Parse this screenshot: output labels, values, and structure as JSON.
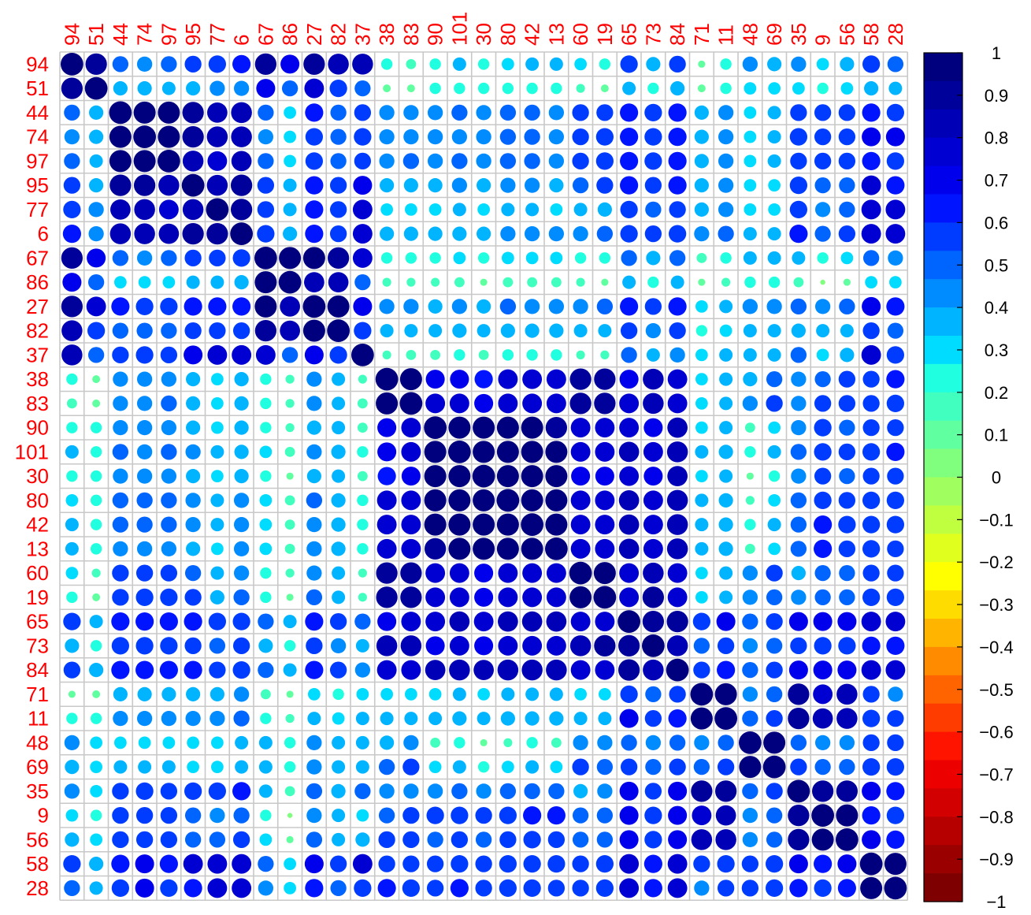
{
  "chart_data": {
    "type": "heatmap",
    "subtype": "correlation-circle-matrix",
    "title": "",
    "xlabel": "",
    "ylabel": "",
    "labels": [
      "94",
      "51",
      "44",
      "74",
      "97",
      "95",
      "77",
      "6",
      "67",
      "86",
      "27",
      "82",
      "37",
      "38",
      "83",
      "90",
      "101",
      "30",
      "80",
      "42",
      "13",
      "60",
      "19",
      "65",
      "73",
      "84",
      "71",
      "11",
      "48",
      "69",
      "35",
      "9",
      "56",
      "58",
      "28"
    ],
    "label_color": "#ff0000",
    "grid_color": "#c8c8c8",
    "value_range": [
      -1,
      1
    ],
    "values": [
      [
        1,
        0.9,
        0.5,
        0.45,
        0.5,
        0.55,
        0.6,
        0.65,
        0.9,
        0.7,
        0.9,
        0.85,
        0.85,
        0.25,
        0.2,
        0.25,
        0.35,
        0.25,
        0.3,
        0.35,
        0.35,
        0.3,
        0.25,
        0.6,
        0.4,
        0.55,
        0.1,
        0.25,
        0.45,
        0.4,
        0.45,
        0.3,
        0.4,
        0.6,
        0.5
      ],
      [
        0.9,
        1,
        0.4,
        0.4,
        0.35,
        0.4,
        0.45,
        0.45,
        0.7,
        0.5,
        0.75,
        0.6,
        0.5,
        0.12,
        0.12,
        0.25,
        0.25,
        0.25,
        0.25,
        0.25,
        0.25,
        0.15,
        0.12,
        0.35,
        0.25,
        0.4,
        0.12,
        0.25,
        0.3,
        0.3,
        0.3,
        0.25,
        0.3,
        0.4,
        0.35
      ],
      [
        0.5,
        0.4,
        1,
        0.95,
        0.95,
        0.9,
        0.8,
        0.85,
        0.5,
        0.3,
        0.65,
        0.5,
        0.55,
        0.45,
        0.45,
        0.45,
        0.5,
        0.45,
        0.5,
        0.5,
        0.45,
        0.55,
        0.55,
        0.65,
        0.6,
        0.65,
        0.4,
        0.45,
        0.3,
        0.35,
        0.55,
        0.55,
        0.55,
        0.65,
        0.6
      ],
      [
        0.45,
        0.4,
        0.95,
        1,
        0.95,
        0.9,
        0.85,
        0.85,
        0.45,
        0.3,
        0.6,
        0.5,
        0.6,
        0.45,
        0.45,
        0.45,
        0.45,
        0.45,
        0.5,
        0.5,
        0.45,
        0.55,
        0.6,
        0.65,
        0.6,
        0.65,
        0.4,
        0.45,
        0.3,
        0.35,
        0.6,
        0.55,
        0.55,
        0.7,
        0.7
      ],
      [
        0.5,
        0.35,
        0.95,
        0.95,
        1,
        0.85,
        0.75,
        0.8,
        0.5,
        0.3,
        0.6,
        0.5,
        0.55,
        0.45,
        0.5,
        0.45,
        0.5,
        0.45,
        0.5,
        0.5,
        0.45,
        0.55,
        0.6,
        0.65,
        0.6,
        0.65,
        0.4,
        0.45,
        0.3,
        0.35,
        0.55,
        0.55,
        0.55,
        0.65,
        0.6
      ],
      [
        0.55,
        0.4,
        0.9,
        0.9,
        0.85,
        1,
        0.85,
        0.9,
        0.55,
        0.35,
        0.65,
        0.55,
        0.7,
        0.4,
        0.4,
        0.4,
        0.45,
        0.4,
        0.45,
        0.45,
        0.4,
        0.5,
        0.55,
        0.65,
        0.55,
        0.65,
        0.4,
        0.45,
        0.3,
        0.3,
        0.6,
        0.5,
        0.5,
        0.75,
        0.65
      ],
      [
        0.6,
        0.45,
        0.8,
        0.85,
        0.75,
        0.85,
        1,
        0.9,
        0.55,
        0.35,
        0.65,
        0.55,
        0.75,
        0.3,
        0.3,
        0.3,
        0.35,
        0.3,
        0.35,
        0.35,
        0.3,
        0.35,
        0.4,
        0.6,
        0.5,
        0.55,
        0.4,
        0.45,
        0.3,
        0.3,
        0.6,
        0.45,
        0.5,
        0.75,
        0.75
      ],
      [
        0.65,
        0.45,
        0.85,
        0.85,
        0.8,
        0.9,
        0.9,
        1,
        0.6,
        0.4,
        0.65,
        0.55,
        0.75,
        0.4,
        0.4,
        0.4,
        0.4,
        0.4,
        0.45,
        0.45,
        0.45,
        0.45,
        0.5,
        0.6,
        0.55,
        0.6,
        0.45,
        0.5,
        0.35,
        0.35,
        0.65,
        0.5,
        0.55,
        0.75,
        0.75
      ],
      [
        0.9,
        0.7,
        0.5,
        0.45,
        0.5,
        0.55,
        0.55,
        0.6,
        1,
        0.95,
        0.95,
        0.9,
        0.75,
        0.25,
        0.25,
        0.25,
        0.3,
        0.25,
        0.3,
        0.3,
        0.3,
        0.25,
        0.25,
        0.5,
        0.4,
        0.5,
        0.2,
        0.25,
        0.35,
        0.35,
        0.35,
        0.25,
        0.3,
        0.5,
        0.45
      ],
      [
        0.7,
        0.5,
        0.3,
        0.3,
        0.3,
        0.35,
        0.35,
        0.4,
        0.95,
        1,
        0.8,
        0.8,
        0.5,
        0.15,
        0.15,
        0.15,
        0.2,
        0.1,
        0.2,
        0.2,
        0.2,
        0.15,
        0.1,
        0.35,
        0.25,
        0.35,
        0.1,
        0.15,
        0.25,
        0.25,
        0.2,
        0.05,
        0.1,
        0.3,
        0.3
      ],
      [
        0.9,
        0.75,
        0.65,
        0.6,
        0.6,
        0.65,
        0.65,
        0.65,
        0.95,
        0.8,
        1,
        0.95,
        0.7,
        0.45,
        0.45,
        0.4,
        0.45,
        0.4,
        0.5,
        0.45,
        0.45,
        0.45,
        0.5,
        0.65,
        0.55,
        0.65,
        0.3,
        0.35,
        0.45,
        0.45,
        0.5,
        0.45,
        0.5,
        0.7,
        0.65
      ],
      [
        0.85,
        0.6,
        0.5,
        0.5,
        0.5,
        0.55,
        0.55,
        0.55,
        0.9,
        0.8,
        0.95,
        1,
        0.6,
        0.35,
        0.35,
        0.35,
        0.4,
        0.35,
        0.4,
        0.4,
        0.4,
        0.35,
        0.35,
        0.55,
        0.45,
        0.55,
        0.25,
        0.3,
        0.35,
        0.35,
        0.4,
        0.35,
        0.35,
        0.55,
        0.5
      ],
      [
        0.85,
        0.5,
        0.55,
        0.6,
        0.55,
        0.7,
        0.75,
        0.75,
        0.75,
        0.5,
        0.7,
        0.6,
        1,
        0.15,
        0.2,
        0.2,
        0.25,
        0.2,
        0.25,
        0.25,
        0.25,
        0.15,
        0.15,
        0.5,
        0.35,
        0.45,
        0.3,
        0.35,
        0.35,
        0.35,
        0.5,
        0.3,
        0.4,
        0.75,
        0.6
      ],
      [
        0.25,
        0.12,
        0.45,
        0.45,
        0.45,
        0.4,
        0.3,
        0.4,
        0.25,
        0.15,
        0.45,
        0.35,
        0.15,
        1,
        0.95,
        0.7,
        0.7,
        0.65,
        0.75,
        0.75,
        0.75,
        0.9,
        0.9,
        0.7,
        0.85,
        0.75,
        0.3,
        0.35,
        0.4,
        0.5,
        0.45,
        0.5,
        0.55,
        0.55,
        0.65
      ],
      [
        0.2,
        0.12,
        0.45,
        0.45,
        0.5,
        0.4,
        0.3,
        0.4,
        0.25,
        0.15,
        0.45,
        0.35,
        0.2,
        0.95,
        1,
        0.75,
        0.75,
        0.7,
        0.75,
        0.75,
        0.75,
        0.9,
        0.9,
        0.75,
        0.85,
        0.75,
        0.3,
        0.35,
        0.45,
        0.55,
        0.45,
        0.55,
        0.55,
        0.55,
        0.6
      ],
      [
        0.25,
        0.25,
        0.45,
        0.45,
        0.45,
        0.4,
        0.3,
        0.4,
        0.25,
        0.15,
        0.4,
        0.35,
        0.2,
        0.7,
        0.75,
        1,
        0.95,
        0.95,
        0.95,
        0.95,
        0.9,
        0.75,
        0.75,
        0.75,
        0.7,
        0.8,
        0.3,
        0.35,
        0.2,
        0.3,
        0.45,
        0.6,
        0.5,
        0.55,
        0.55
      ],
      [
        0.35,
        0.25,
        0.5,
        0.45,
        0.5,
        0.45,
        0.35,
        0.4,
        0.3,
        0.2,
        0.45,
        0.4,
        0.25,
        0.7,
        0.75,
        0.95,
        1,
        0.95,
        0.95,
        0.95,
        0.95,
        0.75,
        0.75,
        0.8,
        0.75,
        0.85,
        0.35,
        0.4,
        0.25,
        0.35,
        0.5,
        0.6,
        0.55,
        0.6,
        0.65
      ],
      [
        0.25,
        0.25,
        0.45,
        0.45,
        0.45,
        0.4,
        0.3,
        0.4,
        0.25,
        0.1,
        0.4,
        0.35,
        0.2,
        0.65,
        0.7,
        0.95,
        0.95,
        1,
        0.95,
        0.95,
        0.95,
        0.7,
        0.7,
        0.75,
        0.7,
        0.8,
        0.3,
        0.35,
        0.1,
        0.25,
        0.45,
        0.55,
        0.5,
        0.55,
        0.55
      ],
      [
        0.3,
        0.25,
        0.5,
        0.5,
        0.5,
        0.45,
        0.35,
        0.45,
        0.3,
        0.2,
        0.5,
        0.4,
        0.25,
        0.75,
        0.75,
        0.95,
        0.95,
        0.95,
        1,
        0.95,
        0.95,
        0.75,
        0.75,
        0.8,
        0.75,
        0.85,
        0.35,
        0.4,
        0.15,
        0.3,
        0.5,
        0.6,
        0.55,
        0.6,
        0.6
      ],
      [
        0.35,
        0.25,
        0.5,
        0.5,
        0.5,
        0.45,
        0.35,
        0.45,
        0.3,
        0.2,
        0.45,
        0.4,
        0.25,
        0.75,
        0.75,
        0.95,
        0.95,
        0.95,
        0.95,
        1,
        0.95,
        0.75,
        0.75,
        0.8,
        0.75,
        0.85,
        0.35,
        0.4,
        0.25,
        0.35,
        0.5,
        0.65,
        0.6,
        0.6,
        0.6
      ],
      [
        0.35,
        0.25,
        0.45,
        0.45,
        0.45,
        0.4,
        0.3,
        0.45,
        0.3,
        0.2,
        0.45,
        0.4,
        0.25,
        0.75,
        0.75,
        0.9,
        0.95,
        0.95,
        0.95,
        0.95,
        1,
        0.75,
        0.75,
        0.8,
        0.75,
        0.85,
        0.35,
        0.4,
        0.2,
        0.3,
        0.5,
        0.65,
        0.55,
        0.6,
        0.55
      ],
      [
        0.3,
        0.15,
        0.55,
        0.55,
        0.55,
        0.5,
        0.35,
        0.45,
        0.25,
        0.15,
        0.45,
        0.35,
        0.15,
        0.9,
        0.9,
        0.75,
        0.75,
        0.7,
        0.75,
        0.75,
        0.75,
        1,
        0.95,
        0.75,
        0.85,
        0.75,
        0.3,
        0.35,
        0.45,
        0.55,
        0.4,
        0.5,
        0.5,
        0.55,
        0.55
      ],
      [
        0.25,
        0.12,
        0.55,
        0.6,
        0.6,
        0.55,
        0.4,
        0.5,
        0.25,
        0.1,
        0.5,
        0.35,
        0.15,
        0.9,
        0.9,
        0.75,
        0.75,
        0.7,
        0.75,
        0.75,
        0.75,
        0.95,
        1,
        0.75,
        0.9,
        0.75,
        0.3,
        0.35,
        0.45,
        0.5,
        0.45,
        0.5,
        0.5,
        0.6,
        0.6
      ],
      [
        0.6,
        0.35,
        0.65,
        0.65,
        0.65,
        0.65,
        0.6,
        0.6,
        0.5,
        0.35,
        0.65,
        0.55,
        0.5,
        0.7,
        0.75,
        0.75,
        0.8,
        0.75,
        0.8,
        0.8,
        0.8,
        0.75,
        0.75,
        1,
        0.9,
        0.9,
        0.6,
        0.7,
        0.5,
        0.55,
        0.7,
        0.7,
        0.7,
        0.75,
        0.75
      ],
      [
        0.4,
        0.25,
        0.6,
        0.6,
        0.6,
        0.55,
        0.5,
        0.55,
        0.4,
        0.25,
        0.55,
        0.45,
        0.35,
        0.85,
        0.85,
        0.7,
        0.75,
        0.7,
        0.75,
        0.75,
        0.75,
        0.85,
        0.9,
        0.9,
        1,
        0.85,
        0.5,
        0.55,
        0.45,
        0.5,
        0.55,
        0.6,
        0.6,
        0.65,
        0.65
      ],
      [
        0.55,
        0.4,
        0.65,
        0.65,
        0.65,
        0.65,
        0.55,
        0.6,
        0.5,
        0.35,
        0.65,
        0.55,
        0.45,
        0.75,
        0.75,
        0.8,
        0.85,
        0.8,
        0.85,
        0.85,
        0.85,
        0.75,
        0.75,
        0.9,
        0.85,
        1,
        0.55,
        0.65,
        0.5,
        0.55,
        0.7,
        0.7,
        0.7,
        0.75,
        0.75
      ],
      [
        0.1,
        0.12,
        0.4,
        0.4,
        0.4,
        0.4,
        0.4,
        0.45,
        0.2,
        0.1,
        0.3,
        0.25,
        0.3,
        0.3,
        0.3,
        0.3,
        0.35,
        0.3,
        0.35,
        0.35,
        0.35,
        0.3,
        0.3,
        0.6,
        0.5,
        0.55,
        1,
        0.95,
        0.45,
        0.5,
        0.9,
        0.75,
        0.85,
        0.55,
        0.45
      ],
      [
        0.25,
        0.25,
        0.45,
        0.45,
        0.45,
        0.45,
        0.45,
        0.5,
        0.25,
        0.15,
        0.35,
        0.3,
        0.35,
        0.35,
        0.35,
        0.35,
        0.4,
        0.35,
        0.4,
        0.4,
        0.4,
        0.35,
        0.35,
        0.7,
        0.55,
        0.65,
        0.95,
        1,
        0.5,
        0.55,
        0.9,
        0.8,
        0.85,
        0.6,
        0.55
      ],
      [
        0.45,
        0.3,
        0.3,
        0.3,
        0.3,
        0.3,
        0.3,
        0.35,
        0.35,
        0.25,
        0.45,
        0.35,
        0.35,
        0.4,
        0.45,
        0.2,
        0.25,
        0.1,
        0.15,
        0.25,
        0.2,
        0.45,
        0.45,
        0.5,
        0.45,
        0.5,
        0.45,
        0.5,
        1,
        0.95,
        0.5,
        0.45,
        0.45,
        0.55,
        0.55
      ],
      [
        0.4,
        0.3,
        0.35,
        0.35,
        0.35,
        0.3,
        0.3,
        0.35,
        0.35,
        0.25,
        0.45,
        0.35,
        0.35,
        0.5,
        0.55,
        0.3,
        0.35,
        0.25,
        0.3,
        0.35,
        0.3,
        0.55,
        0.5,
        0.55,
        0.5,
        0.55,
        0.5,
        0.55,
        0.95,
        1,
        0.55,
        0.5,
        0.5,
        0.6,
        0.6
      ],
      [
        0.45,
        0.3,
        0.55,
        0.6,
        0.55,
        0.6,
        0.6,
        0.65,
        0.35,
        0.2,
        0.5,
        0.4,
        0.5,
        0.45,
        0.45,
        0.45,
        0.5,
        0.45,
        0.5,
        0.5,
        0.5,
        0.4,
        0.45,
        0.7,
        0.55,
        0.7,
        0.9,
        0.9,
        0.5,
        0.55,
        1,
        0.9,
        0.9,
        0.7,
        0.65
      ],
      [
        0.3,
        0.25,
        0.55,
        0.55,
        0.55,
        0.5,
        0.45,
        0.5,
        0.25,
        0.05,
        0.45,
        0.35,
        0.3,
        0.5,
        0.55,
        0.6,
        0.6,
        0.55,
        0.6,
        0.65,
        0.65,
        0.5,
        0.5,
        0.7,
        0.6,
        0.7,
        0.75,
        0.8,
        0.45,
        0.5,
        0.9,
        1,
        0.95,
        0.65,
        0.6
      ],
      [
        0.4,
        0.3,
        0.55,
        0.55,
        0.55,
        0.5,
        0.5,
        0.55,
        0.3,
        0.1,
        0.5,
        0.35,
        0.4,
        0.55,
        0.55,
        0.5,
        0.55,
        0.5,
        0.55,
        0.6,
        0.55,
        0.5,
        0.5,
        0.7,
        0.6,
        0.7,
        0.85,
        0.85,
        0.45,
        0.5,
        0.9,
        0.95,
        1,
        0.7,
        0.65
      ],
      [
        0.6,
        0.4,
        0.65,
        0.7,
        0.65,
        0.75,
        0.75,
        0.75,
        0.5,
        0.3,
        0.7,
        0.55,
        0.75,
        0.55,
        0.55,
        0.55,
        0.6,
        0.55,
        0.6,
        0.6,
        0.6,
        0.55,
        0.6,
        0.75,
        0.65,
        0.75,
        0.55,
        0.6,
        0.55,
        0.6,
        0.7,
        0.65,
        0.7,
        1,
        0.95
      ],
      [
        0.5,
        0.35,
        0.6,
        0.7,
        0.6,
        0.65,
        0.75,
        0.75,
        0.45,
        0.3,
        0.65,
        0.5,
        0.6,
        0.65,
        0.6,
        0.55,
        0.65,
        0.55,
        0.6,
        0.6,
        0.55,
        0.55,
        0.6,
        0.75,
        0.65,
        0.75,
        0.45,
        0.55,
        0.55,
        0.6,
        0.65,
        0.6,
        0.65,
        0.95,
        1
      ]
    ],
    "colorbar": {
      "min": -1,
      "max": 1,
      "tick_labels": [
        "1",
        "0.9",
        "0.8",
        "0.7",
        "0.6",
        "0.5",
        "0.4",
        "0.3",
        "0.2",
        "0.1",
        "0",
        "−0.1",
        "−0.2",
        "−0.3",
        "−0.4",
        "−0.5",
        "−0.6",
        "−0.7",
        "−0.8",
        "−0.9",
        "−1"
      ],
      "colors_top_to_bottom": [
        "#00007f",
        "#00009b",
        "#0000b6",
        "#0000d2",
        "#0000ed",
        "#0014ff",
        "#003cff",
        "#0064ff",
        "#008cff",
        "#00b4ff",
        "#00dcff",
        "#20ffdf",
        "#40ffbf",
        "#60ff9f",
        "#80ff7f",
        "#a0ff5f",
        "#c0ff3f",
        "#e0ff1f",
        "#ffff00",
        "#ffdc00",
        "#ffb400",
        "#ff8c00",
        "#ff6400",
        "#ff3c00",
        "#ff1400",
        "#ed0000",
        "#d20000",
        "#b60000",
        "#9b0000",
        "#7f0000"
      ]
    }
  }
}
